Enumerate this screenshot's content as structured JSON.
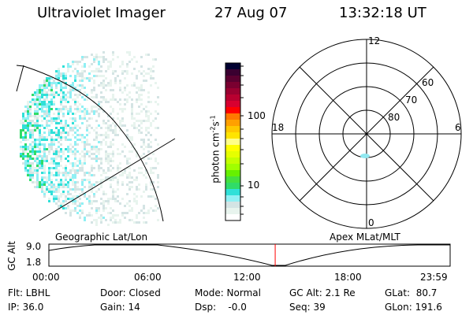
{
  "header": {
    "title": "Ultraviolet Imager",
    "date": "27 Aug 07",
    "time": "13:32:18 UT"
  },
  "colorbar": {
    "label_main": "photon cm",
    "label_exp1": "-2",
    "label_mid": "s",
    "label_exp2": "-1",
    "ticks": [
      "100",
      "10"
    ],
    "colors": [
      "#000030",
      "#3a0030",
      "#5a0030",
      "#7a0030",
      "#9a0030",
      "#b80030",
      "#d80030",
      "#ff0000",
      "#ff7800",
      "#ffa000",
      "#ffc800",
      "#ffe400",
      "#ffff88",
      "#ffff00",
      "#e6ff00",
      "#c4ff00",
      "#a0ff00",
      "#66f000",
      "#44e040",
      "#30dc68",
      "#30e0d8",
      "#90f0f4",
      "#d4e4e4",
      "#e8f4ee",
      "#ffffff"
    ]
  },
  "polar": {
    "labels": {
      "top": "12",
      "left": "18",
      "right": "6",
      "bottom": "0",
      "r60": "60",
      "r70": "70",
      "r80": "80"
    }
  },
  "timeline": {
    "left_title": "Geographic Lat/Lon",
    "right_title": "Apex MLat/MLT",
    "y_axis_label": "GC Alt",
    "y_ticks": [
      "9.0",
      "1.8"
    ],
    "x_ticks": [
      "00:00",
      "06:00",
      "12:00",
      "18:00",
      "23:59"
    ],
    "current_time_fraction": 0.564,
    "marker_color": "#ff0000"
  },
  "info": {
    "flt": "Flt: LBHL",
    "ip": "IP: 36.0",
    "door": "Door: Closed",
    "gain": "Gain: 14",
    "mode": "Mode: Normal",
    "dsp": "Dsp:    -0.0",
    "gcalt": "GC Alt: 2.1 Re",
    "seq": "Seq: 39",
    "glat": "GLat:  80.7",
    "glon": "GLon: 191.6"
  }
}
